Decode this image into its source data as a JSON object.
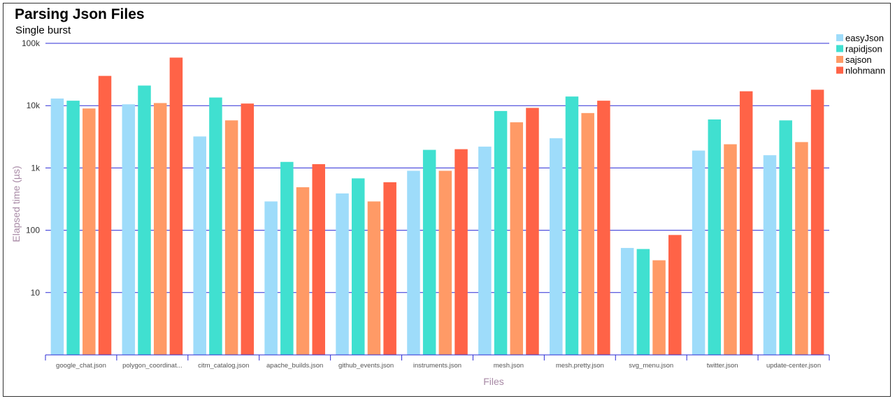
{
  "chart_data": {
    "type": "bar",
    "title": "Parsing Json Files",
    "subtitle": "Single burst",
    "xlabel": "Files",
    "ylabel": "Elapsed time (µs)",
    "yscale": "log",
    "ylim": [
      1,
      100000
    ],
    "yticks": [
      {
        "value": 10,
        "label": "10"
      },
      {
        "value": 100,
        "label": "100"
      },
      {
        "value": 1000,
        "label": "1k"
      },
      {
        "value": 10000,
        "label": "10k"
      },
      {
        "value": 100000,
        "label": "100k"
      }
    ],
    "grid": true,
    "legend_position": "top-right",
    "categories": [
      "google_chat.json",
      "polygon_coordinat...",
      "citm_catalog.json",
      "apache_builds.json",
      "github_events.json",
      "instruments.json",
      "mesh.json",
      "mesh.pretty.json",
      "svg_menu.json",
      "twitter.json",
      "update-center.json"
    ],
    "series": [
      {
        "name": "easyJson",
        "color": "#9edcfa",
        "values": [
          13000,
          10500,
          3200,
          290,
          390,
          900,
          2200,
          3000,
          52,
          1900,
          1600
        ]
      },
      {
        "name": "rapidjson",
        "color": "#40e0d0",
        "values": [
          12000,
          21000,
          13500,
          1250,
          680,
          1950,
          8200,
          14000,
          50,
          6000,
          5800
        ]
      },
      {
        "name": "sajson",
        "color": "#ff9a66",
        "values": [
          9000,
          11000,
          5800,
          490,
          290,
          900,
          5400,
          7600,
          33,
          2400,
          2600
        ]
      },
      {
        "name": "nlohmann",
        "color": "#ff6347",
        "values": [
          30000,
          59000,
          10800,
          1150,
          590,
          2000,
          9200,
          12000,
          84,
          17000,
          18000
        ]
      }
    ]
  }
}
